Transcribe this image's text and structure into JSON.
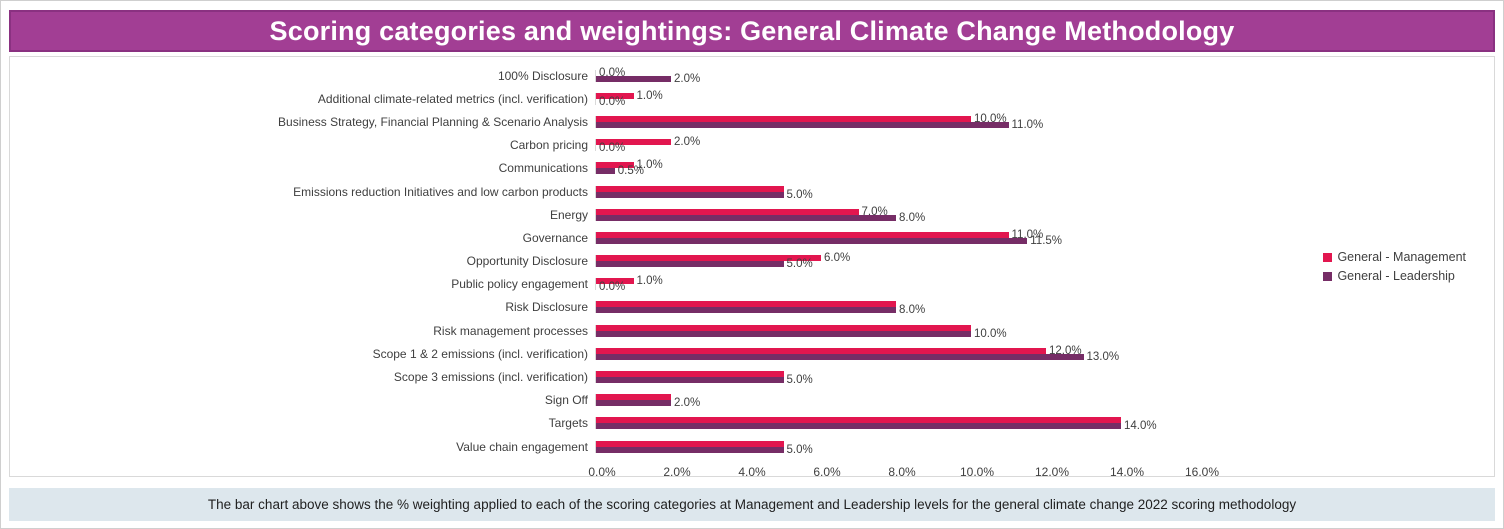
{
  "page": {
    "title": "Scoring categories and weightings: General Climate Change Methodology",
    "footer_note": "The bar chart  above shows the % weighting applied to each of the scoring categories at Management and Leadership levels for the general climate change 2022 scoring methodology",
    "colors": {
      "header_bg": "#a23e94",
      "management": "#e2164f",
      "leadership": "#762d66",
      "footer_bg": "#dde7ed",
      "axis_line": "#d9d9d9",
      "text": "#3f3f3f"
    }
  },
  "legend": {
    "items": [
      {
        "label": "General - Management",
        "color": "#e2164f"
      },
      {
        "label": "General - Leadership",
        "color": "#762d66"
      }
    ]
  },
  "chart_data": {
    "type": "bar",
    "orientation": "horizontal",
    "title": "Scoring categories and weightings: General Climate Change Methodology",
    "xlim": [
      0,
      16
    ],
    "x_ticks": [
      "0.0%",
      "2.0%",
      "4.0%",
      "6.0%",
      "8.0%",
      "10.0%",
      "12.0%",
      "14.0%",
      "16.0%"
    ],
    "series_names": [
      "General - Management",
      "General - Leadership"
    ],
    "rows": [
      {
        "category": "100% Disclosure",
        "management": 0.0,
        "leadership": 2.0,
        "management_label": "0.0%",
        "leadership_label": "2.0%"
      },
      {
        "category": "Additional climate-related metrics (incl. verification)",
        "management": 1.0,
        "leadership": 0.0,
        "management_label": "1.0%",
        "leadership_label": "0.0%"
      },
      {
        "category": "Business Strategy, Financial Planning & Scenario Analysis",
        "management": 10.0,
        "leadership": 11.0,
        "management_label": "10.0%",
        "leadership_label": "11.0%"
      },
      {
        "category": "Carbon pricing",
        "management": 2.0,
        "leadership": 0.0,
        "management_label": "2.0%",
        "leadership_label": "0.0%"
      },
      {
        "category": "Communications",
        "management": 1.0,
        "leadership": 0.5,
        "management_label": "1.0%",
        "leadership_label": "0.5%"
      },
      {
        "category": "Emissions reduction Initiatives and low carbon products",
        "management": 5.0,
        "leadership": 5.0,
        "management_label": "",
        "leadership_label": "5.0%"
      },
      {
        "category": "Energy",
        "management": 7.0,
        "leadership": 8.0,
        "management_label": "7.0%",
        "leadership_label": "8.0%"
      },
      {
        "category": "Governance",
        "management": 11.0,
        "leadership": 11.5,
        "management_label": "11.0%",
        "leadership_label": "11.5%"
      },
      {
        "category": "Opportunity Disclosure",
        "management": 6.0,
        "leadership": 5.0,
        "management_label": "6.0%",
        "leadership_label": "5.0%"
      },
      {
        "category": "Public policy engagement",
        "management": 1.0,
        "leadership": 0.0,
        "management_label": "1.0%",
        "leadership_label": "0.0%"
      },
      {
        "category": "Risk Disclosure",
        "management": 8.0,
        "leadership": 8.0,
        "management_label": "",
        "leadership_label": "8.0%"
      },
      {
        "category": "Risk management processes",
        "management": 10.0,
        "leadership": 10.0,
        "management_label": "",
        "leadership_label": "10.0%"
      },
      {
        "category": "Scope 1 & 2 emissions (incl. verification)",
        "management": 12.0,
        "leadership": 13.0,
        "management_label": "12.0%",
        "leadership_label": "13.0%"
      },
      {
        "category": "Scope 3 emissions (incl. verification)",
        "management": 5.0,
        "leadership": 5.0,
        "management_label": "",
        "leadership_label": "5.0%"
      },
      {
        "category": "Sign Off",
        "management": 2.0,
        "leadership": 2.0,
        "management_label": "",
        "leadership_label": "2.0%"
      },
      {
        "category": "Targets",
        "management": 14.0,
        "leadership": 14.0,
        "management_label": "",
        "leadership_label": "14.0%"
      },
      {
        "category": "Value chain engagement",
        "management": 5.0,
        "leadership": 5.0,
        "management_label": "",
        "leadership_label": "5.0%"
      }
    ]
  }
}
